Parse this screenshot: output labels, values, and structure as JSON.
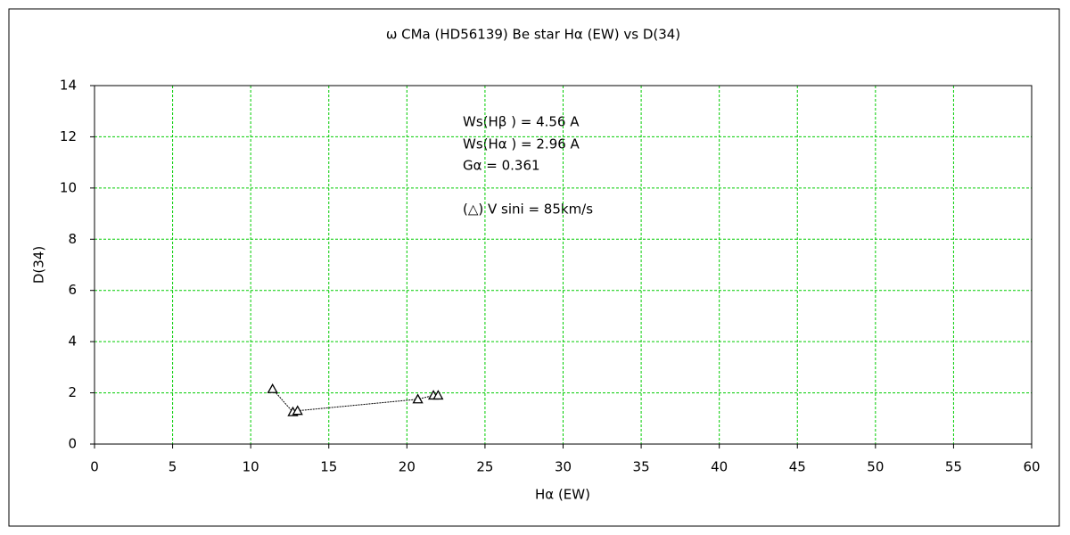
{
  "chart_data": {
    "type": "scatter",
    "title": "ω  CMa (HD56139)    Be star    Hα (EW) vs D(34)",
    "x_label": "Hα (EW)",
    "y_label": "D(34)",
    "annotations": [
      "Ws(Hβ ) = 4.56 A",
      "Ws(Hα ) = 2.96 A",
      "Gα = 0.361",
      "(△) V sini = 85km/s"
    ],
    "series": [
      {
        "color": "#000000",
        "x": [
          11.4,
          12.7,
          13.0,
          20.7,
          21.7,
          22.0
        ],
        "values": [
          2.15,
          1.25,
          1.3,
          1.75,
          1.9,
          1.9
        ]
      }
    ],
    "xlim": [
      0,
      60
    ],
    "xticks": [
      0,
      5,
      10,
      15,
      20,
      25,
      30,
      35,
      40,
      45,
      50,
      55,
      60
    ],
    "ylim": [
      0,
      14
    ],
    "yticks": [
      0,
      2,
      4,
      6,
      8,
      10,
      12,
      14
    ],
    "grid": true,
    "grid_color": "#00cc00"
  }
}
